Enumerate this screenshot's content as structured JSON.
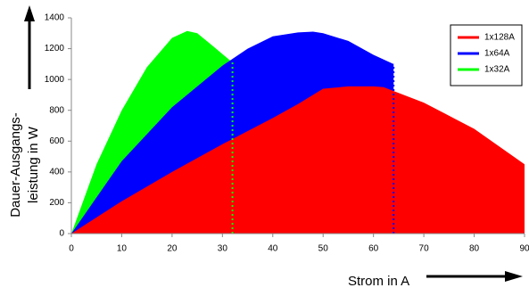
{
  "chart_data": {
    "type": "area",
    "ylabel": [
      "Dauer-Ausgangs-",
      "leistung in W"
    ],
    "xlabel": "Strom in A",
    "xlim": [
      0,
      90
    ],
    "xticks": [
      0,
      10,
      20,
      30,
      40,
      50,
      60,
      70,
      80,
      90
    ],
    "ylim": [
      0,
      1400
    ],
    "yticks": [
      0,
      200,
      400,
      600,
      800,
      1000,
      1200,
      1400
    ],
    "legend": "top-right",
    "series": [
      {
        "name": "1x128A",
        "color": "#ff0000",
        "x": [
          0,
          10,
          20,
          30,
          40,
          45,
          50,
          55,
          60,
          62,
          70,
          80,
          90
        ],
        "values": [
          0,
          210,
          400,
          580,
          750,
          840,
          940,
          955,
          955,
          950,
          850,
          680,
          450
        ]
      },
      {
        "name": "1x64A",
        "color": "#0000ff",
        "x": [
          0,
          10,
          20,
          30,
          35,
          40,
          45,
          48,
          50,
          55,
          60,
          64
        ],
        "values": [
          0,
          470,
          820,
          1090,
          1200,
          1280,
          1305,
          1310,
          1300,
          1250,
          1160,
          1100
        ]
      },
      {
        "name": "1x32A",
        "color": "#00ff00",
        "x": [
          0,
          5,
          10,
          15,
          20,
          23,
          25,
          28,
          32
        ],
        "values": [
          0,
          450,
          800,
          1080,
          1270,
          1315,
          1300,
          1220,
          1110
        ]
      }
    ]
  }
}
